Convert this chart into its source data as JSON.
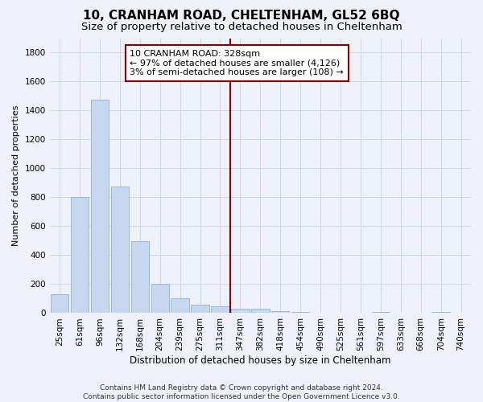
{
  "title": "10, CRANHAM ROAD, CHELTENHAM, GL52 6BQ",
  "subtitle": "Size of property relative to detached houses in Cheltenham",
  "xlabel": "Distribution of detached houses by size in Cheltenham",
  "ylabel": "Number of detached properties",
  "footer_line1": "Contains HM Land Registry data © Crown copyright and database right 2024.",
  "footer_line2": "Contains public sector information licensed under the Open Government Licence v3.0.",
  "bar_labels": [
    "25sqm",
    "61sqm",
    "96sqm",
    "132sqm",
    "168sqm",
    "204sqm",
    "239sqm",
    "275sqm",
    "311sqm",
    "347sqm",
    "382sqm",
    "418sqm",
    "454sqm",
    "490sqm",
    "525sqm",
    "561sqm",
    "597sqm",
    "633sqm",
    "668sqm",
    "704sqm",
    "740sqm"
  ],
  "bar_values": [
    130,
    800,
    1475,
    875,
    495,
    200,
    105,
    60,
    45,
    30,
    30,
    15,
    10,
    0,
    0,
    0,
    10,
    0,
    0,
    10,
    0
  ],
  "bar_color": "#c5d8f0",
  "bar_edge_color": "#8ab4d8",
  "vline_color": "#8b0000",
  "annotation_line1": "10 CRANHAM ROAD: 328sqm",
  "annotation_line2": "← 97% of detached houses are smaller (4,126)",
  "annotation_line3": "3% of semi-detached houses are larger (108) →",
  "annotation_box_color": "#8b0000",
  "annotation_bg": "white",
  "ylim": [
    0,
    1900
  ],
  "yticks": [
    0,
    200,
    400,
    600,
    800,
    1000,
    1200,
    1400,
    1600,
    1800
  ],
  "grid_color": "#d0d8e8",
  "background_color": "#eef2f8",
  "title_fontsize": 11,
  "subtitle_fontsize": 9.5,
  "ylabel_fontsize": 8,
  "xlabel_fontsize": 8.5,
  "tick_fontsize": 7.5,
  "annotation_fontsize": 8,
  "footer_fontsize": 6.5,
  "vline_x_index": 8.5
}
